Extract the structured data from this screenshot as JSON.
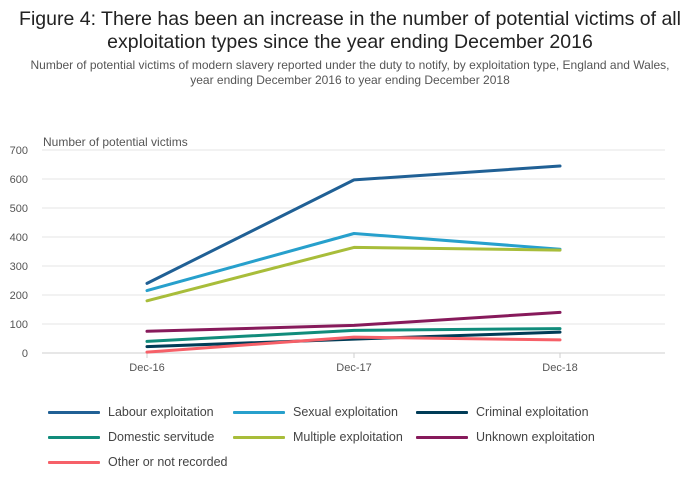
{
  "title": "Figure 4: There has been an increase in the number of potential victims of all exploitation types since the year ending December 2016",
  "subtitle": "Number of potential victims of modern slavery reported under the duty to notify, by exploitation type, England and Wales, year ending December 2016 to year ending December 2018",
  "chart_data": {
    "type": "line",
    "title": "Figure 4: There has been an increase in the number of potential victims of all exploitation types since the year ending December 2016",
    "ylabel": "Number of potential victims",
    "xlabel": "",
    "categories": [
      "Dec-16",
      "Dec-17",
      "Dec-18"
    ],
    "ylim": [
      0,
      700
    ],
    "yticks": [
      0,
      100,
      200,
      300,
      400,
      500,
      600,
      700
    ],
    "grid": true,
    "legend_position": "bottom",
    "series": [
      {
        "name": "Labour exploitation",
        "color": "#206095",
        "values": [
          240,
          597,
          645
        ]
      },
      {
        "name": "Sexual exploitation",
        "color": "#27a0cc",
        "values": [
          215,
          412,
          358
        ]
      },
      {
        "name": "Criminal exploitation",
        "color": "#003c57",
        "values": [
          22,
          48,
          72
        ]
      },
      {
        "name": "Domestic servitude",
        "color": "#118c7b",
        "values": [
          40,
          78,
          84
        ]
      },
      {
        "name": "Multiple exploitation",
        "color": "#a8bd3a",
        "values": [
          180,
          364,
          355
        ]
      },
      {
        "name": "Unknown exploitation",
        "color": "#871a5b",
        "values": [
          75,
          95,
          140
        ]
      },
      {
        "name": "Other or not recorded",
        "color": "#f66068",
        "values": [
          3,
          55,
          45
        ]
      }
    ]
  }
}
